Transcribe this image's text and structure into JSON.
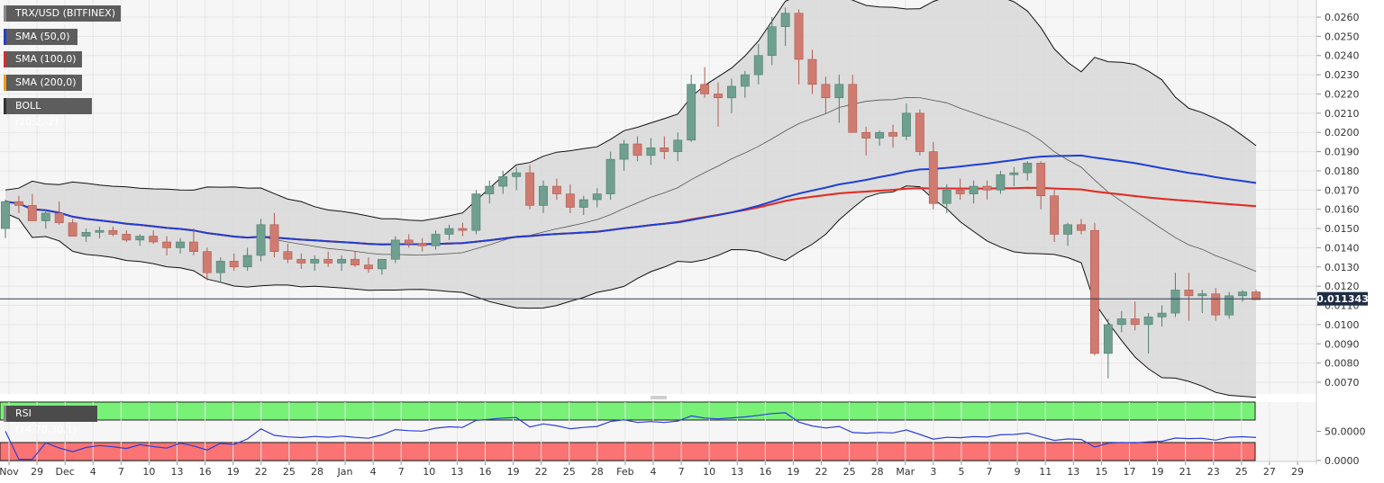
{
  "chart_data": {
    "type": "candlestick",
    "title": "TRX/USD (BITFINEX)",
    "indicators": [
      {
        "label": "SMA (50,0)",
        "color": "#1f3fd6"
      },
      {
        "label": "SMA (100,0)",
        "color": "#e02b2b"
      },
      {
        "label": "SMA (200,0)",
        "color": "#f39c1a"
      },
      {
        "label": "BOLL (20,2,-2)",
        "color": "#333333"
      }
    ],
    "price_axis": {
      "ticks": [
        "0.0260",
        "0.0250",
        "0.0240",
        "0.0230",
        "0.0220",
        "0.0210",
        "0.0200",
        "0.0190",
        "0.0180",
        "0.0170",
        "0.0160",
        "0.0150",
        "0.0140",
        "0.0130",
        "0.0120",
        "0.0110",
        "0.0100",
        "0.0090",
        "0.0080",
        "0.0070"
      ],
      "ylim": [
        0.0065,
        0.0266
      ]
    },
    "current_price": "0.011343",
    "x_labels": [
      "Nov",
      "29",
      "Dec",
      "4",
      "7",
      "10",
      "13",
      "16",
      "19",
      "22",
      "25",
      "28",
      "Jan",
      "4",
      "7",
      "10",
      "13",
      "16",
      "19",
      "22",
      "25",
      "28",
      "Feb",
      "4",
      "7",
      "10",
      "13",
      "16",
      "19",
      "22",
      "25",
      "28",
      "Mar",
      "3",
      "5",
      "7",
      "9",
      "11",
      "13",
      "15",
      "17",
      "19",
      "21",
      "23",
      "25",
      "27",
      "29"
    ],
    "candles": [
      [
        0.015,
        0.0165,
        0.0145,
        0.0164
      ],
      [
        0.0164,
        0.0167,
        0.0158,
        0.0162
      ],
      [
        0.0162,
        0.0168,
        0.0155,
        0.0154
      ],
      [
        0.0154,
        0.016,
        0.015,
        0.0158
      ],
      [
        0.0158,
        0.0164,
        0.0152,
        0.0153
      ],
      [
        0.0153,
        0.0155,
        0.0146,
        0.0146
      ],
      [
        0.0146,
        0.015,
        0.0143,
        0.0148
      ],
      [
        0.0148,
        0.0151,
        0.0145,
        0.0149
      ],
      [
        0.0149,
        0.0151,
        0.0146,
        0.0147
      ],
      [
        0.0147,
        0.0149,
        0.0143,
        0.0144
      ],
      [
        0.0144,
        0.0147,
        0.0141,
        0.0146
      ],
      [
        0.0146,
        0.0149,
        0.0142,
        0.0143
      ],
      [
        0.0143,
        0.0146,
        0.0136,
        0.014
      ],
      [
        0.014,
        0.0145,
        0.0137,
        0.0143
      ],
      [
        0.0143,
        0.015,
        0.0136,
        0.0138
      ],
      [
        0.0138,
        0.014,
        0.0123,
        0.0127
      ],
      [
        0.0127,
        0.0135,
        0.0122,
        0.0133
      ],
      [
        0.0133,
        0.0137,
        0.0128,
        0.013
      ],
      [
        0.013,
        0.014,
        0.0128,
        0.0136
      ],
      [
        0.0136,
        0.0155,
        0.0133,
        0.0152
      ],
      [
        0.0152,
        0.0158,
        0.0135,
        0.0138
      ],
      [
        0.0138,
        0.0142,
        0.0132,
        0.0134
      ],
      [
        0.0134,
        0.0137,
        0.0129,
        0.0132
      ],
      [
        0.0132,
        0.0136,
        0.0128,
        0.0134
      ],
      [
        0.0134,
        0.0138,
        0.013,
        0.0132
      ],
      [
        0.0132,
        0.0136,
        0.0128,
        0.0134
      ],
      [
        0.0134,
        0.0138,
        0.013,
        0.0131
      ],
      [
        0.0131,
        0.0135,
        0.0127,
        0.0129
      ],
      [
        0.0129,
        0.0133,
        0.0126,
        0.0134
      ],
      [
        0.0134,
        0.0146,
        0.0132,
        0.0144
      ],
      [
        0.0144,
        0.0147,
        0.014,
        0.0142
      ],
      [
        0.0142,
        0.0145,
        0.0138,
        0.0141
      ],
      [
        0.0141,
        0.0149,
        0.0139,
        0.0147
      ],
      [
        0.0147,
        0.0152,
        0.0144,
        0.015
      ],
      [
        0.015,
        0.0153,
        0.0146,
        0.0149
      ],
      [
        0.0149,
        0.017,
        0.0147,
        0.0168
      ],
      [
        0.0168,
        0.0175,
        0.0163,
        0.0172
      ],
      [
        0.0172,
        0.018,
        0.0168,
        0.0177
      ],
      [
        0.0177,
        0.0182,
        0.017,
        0.0179
      ],
      [
        0.0179,
        0.0183,
        0.016,
        0.0162
      ],
      [
        0.0162,
        0.0175,
        0.0158,
        0.0172
      ],
      [
        0.0172,
        0.0176,
        0.0165,
        0.0168
      ],
      [
        0.0168,
        0.0173,
        0.0158,
        0.0161
      ],
      [
        0.0161,
        0.0167,
        0.0157,
        0.0165
      ],
      [
        0.0165,
        0.0171,
        0.0161,
        0.0168
      ],
      [
        0.0168,
        0.019,
        0.0165,
        0.0186
      ],
      [
        0.0186,
        0.0196,
        0.018,
        0.0194
      ],
      [
        0.0194,
        0.0198,
        0.0185,
        0.0188
      ],
      [
        0.0188,
        0.0197,
        0.0183,
        0.0192
      ],
      [
        0.0192,
        0.0198,
        0.0186,
        0.019
      ],
      [
        0.019,
        0.02,
        0.0185,
        0.0196
      ],
      [
        0.0196,
        0.023,
        0.0195,
        0.0225
      ],
      [
        0.0225,
        0.0234,
        0.0218,
        0.022
      ],
      [
        0.022,
        0.0226,
        0.0203,
        0.0218
      ],
      [
        0.0218,
        0.0228,
        0.021,
        0.0224
      ],
      [
        0.0224,
        0.0232,
        0.0218,
        0.023
      ],
      [
        0.023,
        0.0246,
        0.0225,
        0.024
      ],
      [
        0.024,
        0.026,
        0.0235,
        0.0255
      ],
      [
        0.0255,
        0.0265,
        0.0245,
        0.0262
      ],
      [
        0.0262,
        0.0264,
        0.0225,
        0.0238
      ],
      [
        0.0238,
        0.0243,
        0.022,
        0.0225
      ],
      [
        0.0225,
        0.0229,
        0.021,
        0.0218
      ],
      [
        0.0218,
        0.023,
        0.0205,
        0.0225
      ],
      [
        0.0225,
        0.023,
        0.02,
        0.02
      ],
      [
        0.02,
        0.0203,
        0.0188,
        0.0197
      ],
      [
        0.0197,
        0.0201,
        0.0193,
        0.02
      ],
      [
        0.02,
        0.0204,
        0.0192,
        0.0198
      ],
      [
        0.0198,
        0.0215,
        0.0196,
        0.021
      ],
      [
        0.021,
        0.0212,
        0.0188,
        0.019
      ],
      [
        0.019,
        0.0195,
        0.016,
        0.0163
      ],
      [
        0.0163,
        0.0173,
        0.0158,
        0.017
      ],
      [
        0.017,
        0.0176,
        0.0165,
        0.0168
      ],
      [
        0.0168,
        0.0175,
        0.0163,
        0.0172
      ],
      [
        0.0172,
        0.0175,
        0.0165,
        0.017
      ],
      [
        0.017,
        0.018,
        0.0168,
        0.0178
      ],
      [
        0.0178,
        0.0182,
        0.0172,
        0.0179
      ],
      [
        0.0179,
        0.0185,
        0.0175,
        0.0184
      ],
      [
        0.0184,
        0.0185,
        0.016,
        0.0167
      ],
      [
        0.0167,
        0.017,
        0.0143,
        0.0147
      ],
      [
        0.0147,
        0.0153,
        0.0141,
        0.0152
      ],
      [
        0.0152,
        0.0155,
        0.0147,
        0.0149
      ],
      [
        0.0149,
        0.0153,
        0.0084,
        0.0085
      ],
      [
        0.0085,
        0.0103,
        0.0072,
        0.01
      ],
      [
        0.01,
        0.0107,
        0.0096,
        0.0103
      ],
      [
        0.0103,
        0.0112,
        0.0097,
        0.01
      ],
      [
        0.01,
        0.0106,
        0.0085,
        0.0104
      ],
      [
        0.0104,
        0.011,
        0.0099,
        0.0106
      ],
      [
        0.0106,
        0.0127,
        0.0104,
        0.0118
      ],
      [
        0.0118,
        0.0127,
        0.0102,
        0.0115
      ],
      [
        0.0115,
        0.0118,
        0.0106,
        0.0116
      ],
      [
        0.0116,
        0.0119,
        0.0102,
        0.0105
      ],
      [
        0.0105,
        0.0117,
        0.0103,
        0.0115
      ],
      [
        0.0115,
        0.0118,
        0.0112,
        0.0117
      ],
      [
        0.0117,
        0.0118,
        0.0113,
        0.0113
      ]
    ],
    "rsi": {
      "label": "RSI (14,70,30,1)",
      "ticks": [
        "50.0000",
        "0.0000"
      ],
      "ylim": [
        0,
        100
      ],
      "overbought": 70,
      "oversold": 30
    }
  }
}
